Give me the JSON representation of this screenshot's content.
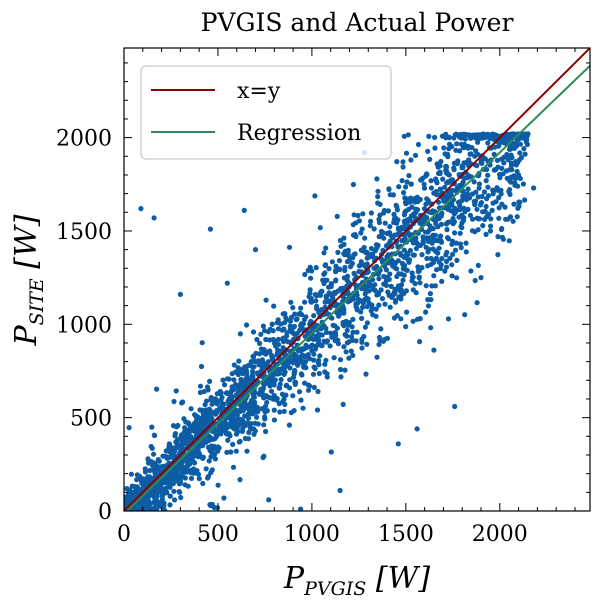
{
  "chart_data": {
    "type": "scatter",
    "title": "PVGIS and Actual Power",
    "xlabel": {
      "base": "P",
      "sub": "PVGIS",
      "unit": " [W]"
    },
    "ylabel": {
      "base": "P",
      "sub": "SITE",
      "unit": " [W]"
    },
    "xlim": [
      0,
      2480
    ],
    "ylim": [
      0,
      2480
    ],
    "xticks": [
      0,
      500,
      1000,
      1500,
      2000
    ],
    "yticks": [
      0,
      500,
      1000,
      1500,
      2000
    ],
    "grid": false,
    "legend_position": "top-left",
    "series": [
      {
        "name": "x=y",
        "kind": "line",
        "color": "#8b0000",
        "x": [
          0,
          2480
        ],
        "y": [
          0,
          2480
        ]
      },
      {
        "name": "Regression",
        "kind": "line",
        "color": "#2e8b57",
        "x": [
          0,
          2480
        ],
        "y": [
          -15,
          2385
        ]
      },
      {
        "kind": "scatter",
        "color": "#0c5da5",
        "point_count_approx": 8000,
        "x_range": [
          0,
          2200
        ],
        "y_range": [
          0,
          2020
        ],
        "y_cap": 2020,
        "trend": "y approx 0.97x - 15",
        "sample_points": [
          [
            100,
            100
          ],
          [
            250,
            240
          ],
          [
            400,
            380
          ],
          [
            600,
            590
          ],
          [
            800,
            770
          ],
          [
            1000,
            960
          ],
          [
            1200,
            1150
          ],
          [
            1400,
            1350
          ],
          [
            1600,
            1550
          ],
          [
            1800,
            1750
          ],
          [
            2000,
            1970
          ],
          [
            90,
            1620
          ],
          [
            160,
            1570
          ],
          [
            460,
            1510
          ],
          [
            640,
            1610
          ],
          [
            1280,
            1920
          ],
          [
            1900,
            1250
          ],
          [
            2100,
            1800
          ],
          [
            2150,
            2020
          ],
          [
            2180,
            1730
          ],
          [
            1760,
            560
          ],
          [
            1150,
            110
          ],
          [
            1460,
            360
          ],
          [
            1560,
            440
          ],
          [
            1950,
            1500
          ],
          [
            940,
            10
          ],
          [
            550,
            1220
          ],
          [
            300,
            1160
          ],
          [
            700,
            1400
          ],
          [
            1350,
            1650
          ]
        ]
      }
    ]
  }
}
